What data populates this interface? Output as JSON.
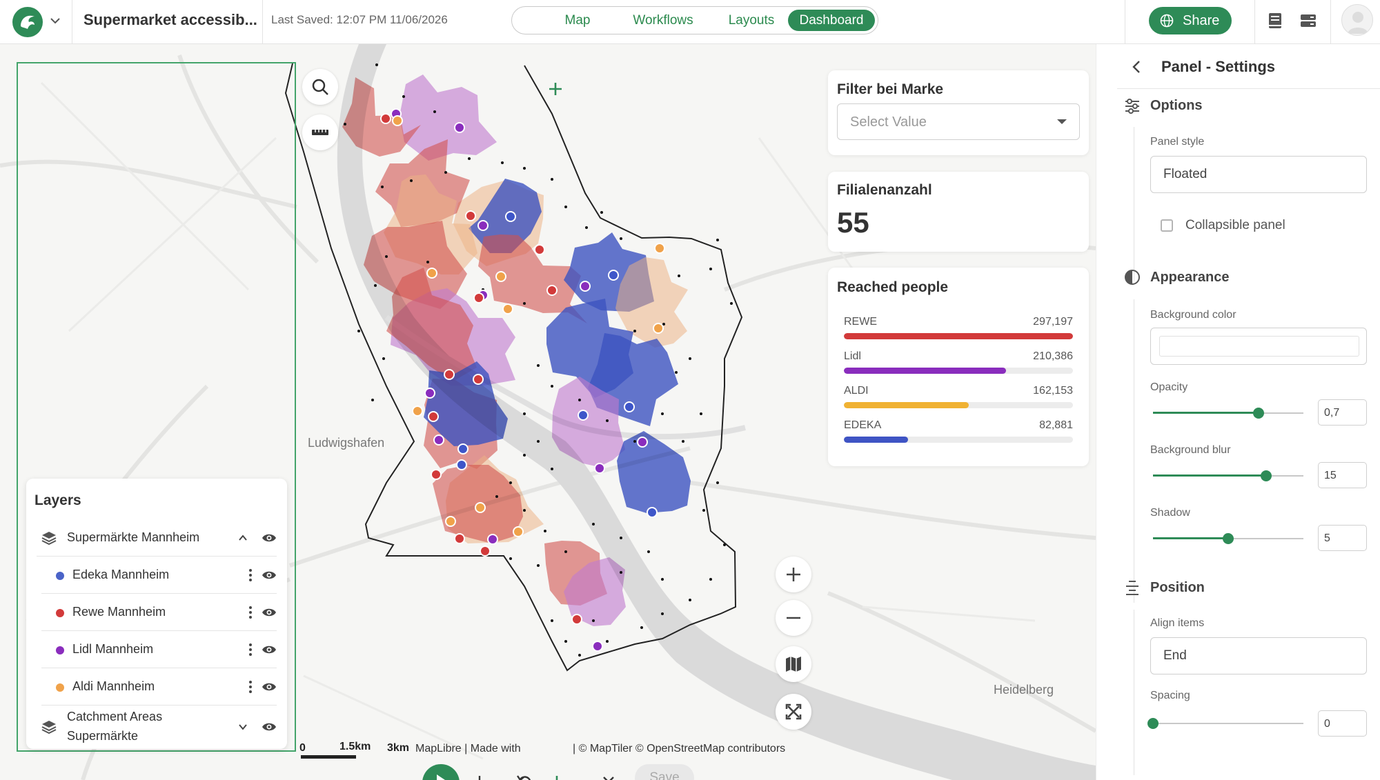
{
  "header": {
    "project_title": "Supermarket accessib...",
    "last_saved": "Last Saved: 12:07 PM 11/06/2026",
    "modes": [
      {
        "label": "Map"
      },
      {
        "label": "Workflows"
      },
      {
        "label": "Layouts"
      },
      {
        "label": "Dashboard"
      }
    ],
    "active_mode": "Dashboard",
    "share_label": "Share",
    "accent_color": "#2e8b57"
  },
  "map": {
    "cities": {
      "left": "Ludwigshafen",
      "right": "Heidelberg"
    },
    "scale": {
      "zero": "0",
      "mid": "1.5km",
      "end": "3km"
    },
    "attribution_left": "MapLibre | Made with",
    "attribution_right": "| © MapTiler © OpenStreetMap contributors",
    "save_label": "Save"
  },
  "layers": {
    "title": "Layers",
    "group": {
      "label": "Supermärkte Mannheim"
    },
    "items": [
      {
        "label": "Edeka Mannheim",
        "color": "#4a63c8"
      },
      {
        "label": "Rewe Mannheim",
        "color": "#d23a3a"
      },
      {
        "label": "Lidl Mannheim",
        "color": "#8a2dbd"
      },
      {
        "label": "Aldi Mannheim",
        "color": "#f0a24a"
      }
    ],
    "catchment": {
      "line1": "Catchment Areas",
      "line2": "Supermärkte"
    }
  },
  "widgets": {
    "filter": {
      "title": "Filter bei Marke",
      "placeholder": "Select Value"
    },
    "count": {
      "title": "Filialenanzahl",
      "value": "55"
    },
    "reached": {
      "title": "Reached people",
      "max": 297197,
      "items": [
        {
          "name": "REWE",
          "value": "297,197",
          "amount": 297197,
          "color": "#d23a3a"
        },
        {
          "name": "Lidl",
          "value": "210,386",
          "amount": 210386,
          "color": "#8a2dbd"
        },
        {
          "name": "ALDI",
          "value": "162,153",
          "amount": 162153,
          "color": "#f0b233"
        },
        {
          "name": "EDEKA",
          "value": "82,881",
          "amount": 82881,
          "color": "#3f54c4"
        }
      ]
    }
  },
  "panel": {
    "title": "Panel - Settings",
    "options": {
      "heading": "Options",
      "panel_style_label": "Panel style",
      "panel_style_value": "Floated",
      "collapsible_label": "Collapsible panel"
    },
    "appearance": {
      "heading": "Appearance",
      "bg_color_label": "Background color",
      "opacity_label": "Opacity",
      "opacity_value": "0,7",
      "opacity": 0.7,
      "blur_label": "Background blur",
      "blur_value": "15",
      "blur_fraction": 0.75,
      "shadow_label": "Shadow",
      "shadow_value": "5",
      "shadow_fraction": 0.5
    },
    "position": {
      "heading": "Position",
      "align_label": "Align items",
      "align_value": "End",
      "spacing_label": "Spacing",
      "spacing_value": "0",
      "spacing_fraction": 0
    }
  }
}
